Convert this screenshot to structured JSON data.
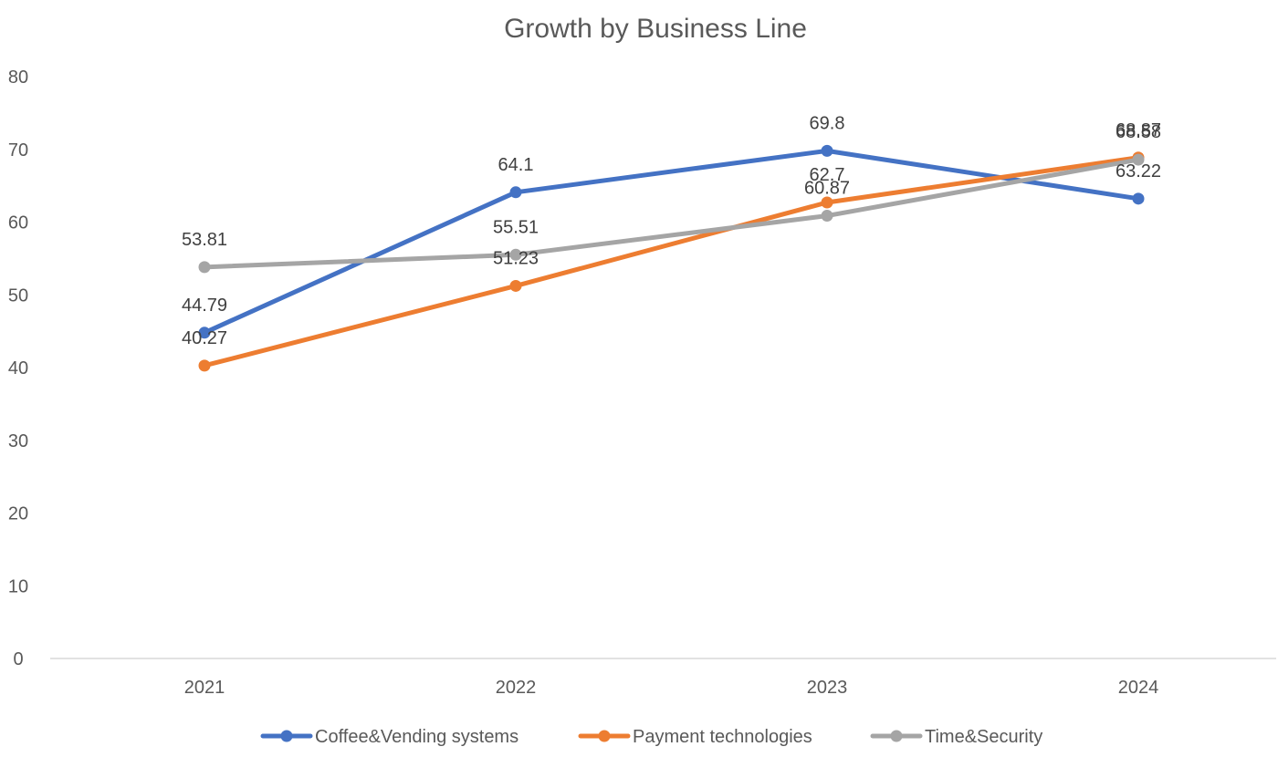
{
  "chart_data": {
    "type": "line",
    "title": "Growth by Business Line",
    "categories": [
      "2021",
      "2022",
      "2023",
      "2024"
    ],
    "ylim": [
      0,
      80
    ],
    "yticks": [
      0,
      10,
      20,
      30,
      40,
      50,
      60,
      70,
      80
    ],
    "xlabel": "",
    "ylabel": "",
    "grid": false,
    "legend_position": "bottom",
    "data_labels": true,
    "series": [
      {
        "name": "Coffee&Vending systems",
        "color": "#4472C4",
        "values": [
          44.79,
          64.1,
          69.8,
          63.22
        ],
        "labels": [
          "44.79",
          "64.1",
          "69.8",
          "63.22"
        ]
      },
      {
        "name": "Payment technologies",
        "color": "#ED7D31",
        "values": [
          40.27,
          51.23,
          62.7,
          68.87
        ],
        "labels": [
          "40.27",
          "51.23",
          "62.7",
          "68.87"
        ]
      },
      {
        "name": "Time&Security",
        "color": "#A5A5A5",
        "values": [
          53.81,
          55.51,
          60.87,
          68.58
        ],
        "labels": [
          "53.81",
          "55.51",
          "60.87",
          "68.58"
        ]
      }
    ]
  }
}
